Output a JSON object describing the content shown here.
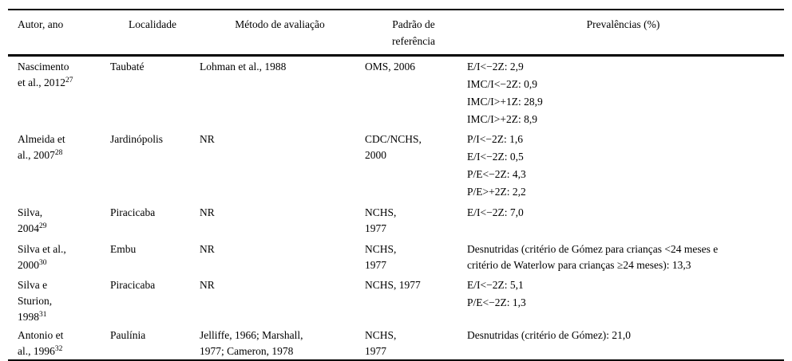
{
  "document": {
    "kind": "journal-article-table",
    "language": "pt-BR"
  },
  "colors": {
    "text": "#000000",
    "background": "#ffffff",
    "rule": "#000000"
  },
  "table": {
    "columns": [
      {
        "id": "autor",
        "label_lines": [
          "Autor, ano"
        ]
      },
      {
        "id": "localidade",
        "label_lines": [
          "Localidade"
        ]
      },
      {
        "id": "metodo",
        "label_lines": [
          "Método de avaliação"
        ]
      },
      {
        "id": "padrao",
        "label_lines": [
          "Padrão de",
          "referência"
        ]
      },
      {
        "id": "prevalencias",
        "label_lines": [
          "Prevalências (%)"
        ]
      }
    ],
    "rows": [
      {
        "autor_lines": [
          "Nascimento",
          "et al., 2012"
        ],
        "autor_ref": "27",
        "localidade": "Taubaté",
        "metodo_lines": [
          "Lohman et al., 1988"
        ],
        "padrao_lines": [
          "OMS, 2006"
        ],
        "prevalencias": [
          [
            "E/I<−2Z: 2,9"
          ],
          [
            "IMC/I<−2Z: 0,9"
          ],
          [
            "IMC/I>+1Z: 28,9"
          ],
          [
            "IMC/I>+2Z: 8,9"
          ]
        ]
      },
      {
        "autor_lines": [
          "Almeida et",
          "al., 2007"
        ],
        "autor_ref": "28",
        "localidade": "Jardinópolis",
        "metodo_lines": [
          "NR"
        ],
        "padrao_lines": [
          "CDC/NCHS,",
          "2000"
        ],
        "prevalencias": [
          [
            "P/I<−2Z: 1,6"
          ],
          [
            "E/I<−2Z: 0,5"
          ],
          [
            "P/E<−2Z: 4,3"
          ],
          [
            "P/E>+2Z: 2,2"
          ]
        ]
      },
      {
        "autor_lines": [
          "Silva,",
          "2004"
        ],
        "autor_ref": "29",
        "localidade": "Piracicaba",
        "metodo_lines": [
          "NR"
        ],
        "padrao_lines": [
          "NCHS,",
          "1977"
        ],
        "prevalencias": [
          [
            "E/I<−2Z: 7,0"
          ]
        ]
      },
      {
        "autor_lines": [
          "Silva et al.,",
          "2000"
        ],
        "autor_ref": "30",
        "localidade": "Embu",
        "metodo_lines": [
          "NR"
        ],
        "padrao_lines": [
          "NCHS,",
          "1977"
        ],
        "prevalencias": [
          [
            "Desnutridas (critério de Gómez para crianças <24 meses e",
            "critério de Waterlow para crianças ≥24 meses): 13,3"
          ]
        ]
      },
      {
        "autor_lines": [
          "Silva e",
          "Sturion,",
          "1998"
        ],
        "autor_ref": "31",
        "localidade": "Piracicaba",
        "metodo_lines": [
          "NR"
        ],
        "padrao_lines": [
          "NCHS, 1977"
        ],
        "prevalencias": [
          [
            "E/I<−2Z: 5,1"
          ],
          [
            "P/E<−2Z: 1,3"
          ]
        ]
      },
      {
        "autor_lines": [
          "Antonio et",
          "al., 1996"
        ],
        "autor_ref": "32",
        "localidade": "Paulínia",
        "metodo_lines": [
          "Jelliffe, 1966; Marshall,",
          "1977; Cameron, 1978"
        ],
        "padrao_lines": [
          "NCHS,",
          "1977"
        ],
        "prevalencias": [
          [
            "Desnutridas (critério de Gómez): 21,0"
          ]
        ]
      }
    ]
  }
}
